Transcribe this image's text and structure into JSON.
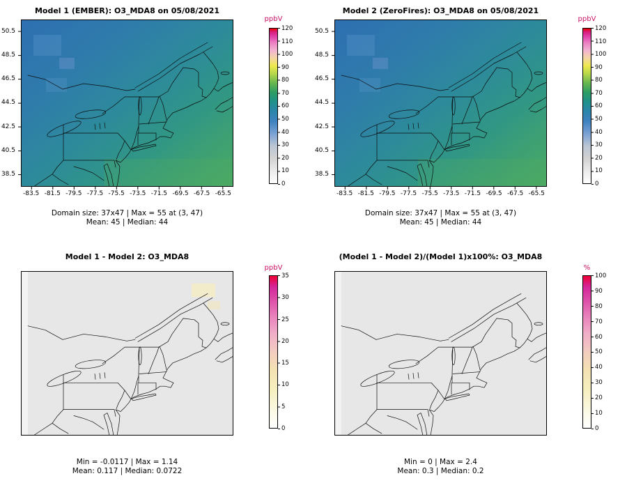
{
  "unit_color": "#cc1166",
  "panels": [
    {
      "title": "Model 1 (EMBER): O3_MDA8 on 05/08/2021",
      "unit": "ppbV",
      "y_ticks": [
        "50.5",
        "48.5",
        "46.5",
        "44.5",
        "42.5",
        "40.5",
        "38.5"
      ],
      "x_ticks": [
        "-83.5",
        "-81.5",
        "-79.5",
        "-77.5",
        "-75.5",
        "-73.5",
        "-71.5",
        "-69.5",
        "-67.5",
        "-65.5"
      ],
      "cbar_ticks": [
        "120",
        "110",
        "100",
        "90",
        "80",
        "70",
        "60",
        "50",
        "40",
        "30",
        "20",
        "10",
        "0"
      ],
      "stats1": "Domain size: 37x47 | Max = 55 at (3, 47)",
      "stats2": "Mean: 45 |  Median: 44",
      "palette": [
        {
          "c": "#ffffff",
          "p": 0
        },
        {
          "c": "#ebebeb",
          "p": 8
        },
        {
          "c": "#d2d2d2",
          "p": 16
        },
        {
          "c": "#bcc6d4",
          "p": 24
        },
        {
          "c": "#7aa2d4",
          "p": 32
        },
        {
          "c": "#3f82c0",
          "p": 40
        },
        {
          "c": "#2a86a8",
          "p": 47
        },
        {
          "c": "#1f9188",
          "p": 53
        },
        {
          "c": "#2f9e63",
          "p": 59
        },
        {
          "c": "#6ab74f",
          "p": 65
        },
        {
          "c": "#b9d84a",
          "p": 71
        },
        {
          "c": "#efe94f",
          "p": 76
        },
        {
          "c": "#f4d5a6",
          "p": 81
        },
        {
          "c": "#f2b3d2",
          "p": 86
        },
        {
          "c": "#eb7ec2",
          "p": 91
        },
        {
          "c": "#de3ea8",
          "p": 95
        },
        {
          "c": "#d81b78",
          "p": 98
        },
        {
          "c": "#f20000",
          "p": 100
        }
      ]
    },
    {
      "title": "Model 2 (ZeroFires): O3_MDA8 on 05/08/2021",
      "unit": "ppbV",
      "y_ticks": [
        "50.5",
        "48.5",
        "46.5",
        "44.5",
        "42.5",
        "40.5",
        "38.5"
      ],
      "x_ticks": [
        "-83.5",
        "-81.5",
        "-79.5",
        "-77.5",
        "-75.5",
        "-73.5",
        "-71.5",
        "-69.5",
        "-67.5",
        "-65.5"
      ],
      "cbar_ticks": [
        "120",
        "110",
        "100",
        "90",
        "80",
        "70",
        "60",
        "50",
        "40",
        "30",
        "20",
        "10",
        "0"
      ],
      "stats1": "Domain size: 37x47 | Max = 55 at (3, 47)",
      "stats2": "Mean: 45 |  Median: 44",
      "palette": [
        {
          "c": "#ffffff",
          "p": 0
        },
        {
          "c": "#ebebeb",
          "p": 8
        },
        {
          "c": "#d2d2d2",
          "p": 16
        },
        {
          "c": "#bcc6d4",
          "p": 24
        },
        {
          "c": "#7aa2d4",
          "p": 32
        },
        {
          "c": "#3f82c0",
          "p": 40
        },
        {
          "c": "#2a86a8",
          "p": 47
        },
        {
          "c": "#1f9188",
          "p": 53
        },
        {
          "c": "#2f9e63",
          "p": 59
        },
        {
          "c": "#6ab74f",
          "p": 65
        },
        {
          "c": "#b9d84a",
          "p": 71
        },
        {
          "c": "#efe94f",
          "p": 76
        },
        {
          "c": "#f4d5a6",
          "p": 81
        },
        {
          "c": "#f2b3d2",
          "p": 86
        },
        {
          "c": "#eb7ec2",
          "p": 91
        },
        {
          "c": "#de3ea8",
          "p": 95
        },
        {
          "c": "#d81b78",
          "p": 98
        },
        {
          "c": "#f20000",
          "p": 100
        }
      ]
    },
    {
      "title": "Model 1 - Model 2: O3_MDA8",
      "unit": "ppbV",
      "cbar_ticks": [
        "35",
        "30",
        "25",
        "20",
        "15",
        "10",
        "5",
        "0"
      ],
      "stats1": "Min = -0.0117 | Max = 1.14",
      "stats2": "Mean: 0.117 |  Median: 0.0722",
      "palette": [
        {
          "c": "#ffffff",
          "p": 0
        },
        {
          "c": "#fbf8e2",
          "p": 12
        },
        {
          "c": "#f6efbf",
          "p": 25
        },
        {
          "c": "#f4e2b2",
          "p": 38
        },
        {
          "c": "#f3ccc0",
          "p": 50
        },
        {
          "c": "#f0aec8",
          "p": 62
        },
        {
          "c": "#e87fba",
          "p": 74
        },
        {
          "c": "#dc4aa6",
          "p": 85
        },
        {
          "c": "#d4259a",
          "p": 93
        },
        {
          "c": "#ee0033",
          "p": 100
        }
      ]
    },
    {
      "title": "(Model 1 - Model 2)/(Model 1)x100%: O3_MDA8",
      "unit": "%",
      "cbar_ticks": [
        "100",
        "90",
        "80",
        "70",
        "60",
        "50",
        "40",
        "30",
        "20",
        "10",
        "0"
      ],
      "stats1": "Min = 0 | Max = 2.4",
      "stats2": "Mean: 0.3 |  Median: 0.2",
      "palette": [
        {
          "c": "#ffffff",
          "p": 0
        },
        {
          "c": "#fbf8e2",
          "p": 12
        },
        {
          "c": "#f6efbf",
          "p": 25
        },
        {
          "c": "#f4e2b2",
          "p": 38
        },
        {
          "c": "#f3ccc0",
          "p": 50
        },
        {
          "c": "#f0aec8",
          "p": 62
        },
        {
          "c": "#e87fba",
          "p": 74
        },
        {
          "c": "#dc4aa6",
          "p": 85
        },
        {
          "c": "#d4259a",
          "p": 93
        },
        {
          "c": "#ee0033",
          "p": 100
        }
      ]
    }
  ],
  "chart_data": [
    {
      "type": "heatmap",
      "title": "Model 1 (EMBER): O3_MDA8 on 05/08/2021",
      "variable": "O3_MDA8",
      "model": "Model 1 (EMBER)",
      "date": "05/08/2021",
      "units": "ppbV",
      "colorbar": {
        "min": 0,
        "max": 120,
        "tick_step": 10
      },
      "x_axis": {
        "ticks": [
          -83.5,
          -81.5,
          -79.5,
          -77.5,
          -75.5,
          -73.5,
          -71.5,
          -69.5,
          -67.5,
          -65.5
        ]
      },
      "y_axis": {
        "ticks": [
          38.5,
          40.5,
          42.5,
          44.5,
          46.5,
          48.5,
          50.5
        ]
      },
      "stats": {
        "domain_size": "37x47",
        "max": 55,
        "max_location": "(3, 47)",
        "mean": 45,
        "median": 44
      },
      "field_description": "ozone field over northeast US, ~40-50 ppbV blue inland, ~55-60 ppbV teal-green toward southeast/ocean"
    },
    {
      "type": "heatmap",
      "title": "Model 2 (ZeroFires): O3_MDA8 on 05/08/2021",
      "variable": "O3_MDA8",
      "model": "Model 2 (ZeroFires)",
      "date": "05/08/2021",
      "units": "ppbV",
      "colorbar": {
        "min": 0,
        "max": 120,
        "tick_step": 10
      },
      "x_axis": {
        "ticks": [
          -83.5,
          -81.5,
          -79.5,
          -77.5,
          -75.5,
          -73.5,
          -71.5,
          -69.5,
          -67.5,
          -65.5
        ]
      },
      "y_axis": {
        "ticks": [
          38.5,
          40.5,
          42.5,
          44.5,
          46.5,
          48.5,
          50.5
        ]
      },
      "stats": {
        "domain_size": "37x47",
        "max": 55,
        "max_location": "(3, 47)",
        "mean": 45,
        "median": 44
      },
      "field_description": "visually identical to Model 1 panel"
    },
    {
      "type": "heatmap",
      "title": "Model 1 - Model 2: O3_MDA8",
      "variable": "O3_MDA8",
      "units": "ppbV",
      "colorbar": {
        "min": 0,
        "max": 35,
        "tick_step": 5
      },
      "stats": {
        "min": -0.0117,
        "max": 1.14,
        "mean": 0.117,
        "median": 0.0722
      },
      "field_description": "near-zero difference everywhere (light gray), faint yellow patch upper-right"
    },
    {
      "type": "heatmap",
      "title": "(Model 1 - Model 2)/(Model 1)x100%: O3_MDA8",
      "variable": "O3_MDA8",
      "units": "%",
      "colorbar": {
        "min": 0,
        "max": 100,
        "tick_step": 10
      },
      "stats": {
        "min": 0,
        "max": 2.4,
        "mean": 0.3,
        "median": 0.2
      },
      "field_description": "near-zero percent difference everywhere (light gray)"
    }
  ]
}
